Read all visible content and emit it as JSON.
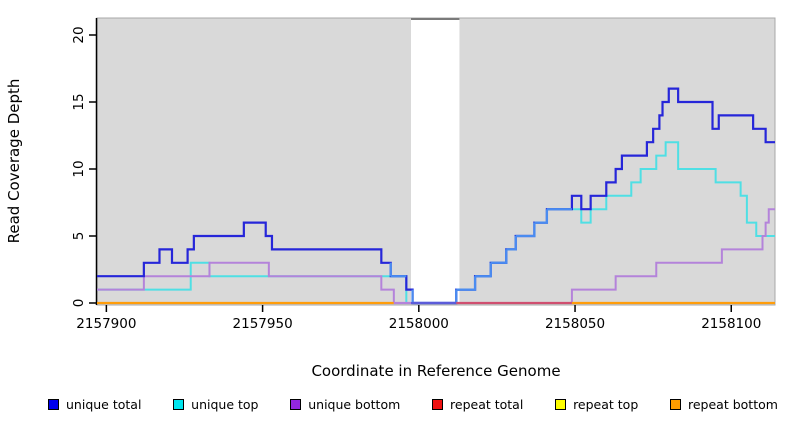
{
  "axes": {
    "x": {
      "label": "Coordinate in Reference Genome",
      "ticks": [
        "2157900",
        "2157950",
        "2158000",
        "2158050",
        "2158100"
      ],
      "tick_values": [
        2157900,
        2157950,
        2158000,
        2158050,
        2158100
      ]
    },
    "y": {
      "label": "Read Coverage Depth",
      "ticks": [
        "0",
        "5",
        "10",
        "15",
        "20"
      ],
      "tick_values": [
        0,
        5,
        10,
        15,
        20
      ]
    }
  },
  "legend": {
    "items": [
      {
        "name": "unique-total",
        "label": "unique total",
        "color": "#0000ee"
      },
      {
        "name": "unique-top",
        "label": "unique top",
        "color": "#00e5ee"
      },
      {
        "name": "unique-bottom",
        "label": "unique bottom",
        "color": "#9326e0"
      },
      {
        "name": "repeat-total",
        "label": "repeat total",
        "color": "#ee1111"
      },
      {
        "name": "repeat-top",
        "label": "repeat top",
        "color": "#fdfd00"
      },
      {
        "name": "repeat-bottom",
        "label": "repeat bottom",
        "color": "#ff9d00"
      }
    ]
  },
  "chart_data": {
    "type": "line",
    "subtype": "step-coverage",
    "title": "",
    "xlabel": "Coordinate in Reference Genome",
    "ylabel": "Read Coverage Depth",
    "x_range": [
      2157897,
      2158114
    ],
    "y_range": [
      0,
      21.3
    ],
    "x_ticks": [
      2157900,
      2157950,
      2158000,
      2158050,
      2158100
    ],
    "y_ticks": [
      0,
      5,
      10,
      15,
      20
    ],
    "panel_color": "#d9d9d9",
    "gap_region": {
      "from": 2157997.5,
      "to": 2158013,
      "color": "#ffffff"
    },
    "overlap_color_total_top": "#4a8cf0",
    "series": [
      {
        "name": "unique total",
        "color": "#2626d9",
        "steps": [
          [
            2157897,
            2
          ],
          [
            2157912,
            3
          ],
          [
            2157917,
            4
          ],
          [
            2157921,
            3
          ],
          [
            2157926,
            4
          ],
          [
            2157928,
            5
          ],
          [
            2157944,
            6
          ],
          [
            2157951,
            5
          ],
          [
            2157953,
            4
          ],
          [
            2157988,
            3
          ],
          [
            2157991,
            2
          ],
          [
            2157996,
            1
          ],
          [
            2157998,
            0
          ],
          [
            2158012,
            1
          ],
          [
            2158018,
            2
          ],
          [
            2158023,
            3
          ],
          [
            2158028,
            4
          ],
          [
            2158031,
            5
          ],
          [
            2158037,
            6
          ],
          [
            2158041,
            7
          ],
          [
            2158049,
            8
          ],
          [
            2158052,
            7
          ],
          [
            2158055,
            8
          ],
          [
            2158060,
            9
          ],
          [
            2158063,
            10
          ],
          [
            2158065,
            11
          ],
          [
            2158073,
            12
          ],
          [
            2158075,
            13
          ],
          [
            2158077,
            14
          ],
          [
            2158078,
            15
          ],
          [
            2158080,
            16
          ],
          [
            2158083,
            15
          ],
          [
            2158094,
            13
          ],
          [
            2158096,
            14
          ],
          [
            2158107,
            13
          ],
          [
            2158111,
            12
          ]
        ]
      },
      {
        "name": "unique top",
        "color": "#4fdfe4",
        "steps": [
          [
            2157897,
            1
          ],
          [
            2157927,
            3
          ],
          [
            2157933,
            2
          ],
          [
            2157996,
            0
          ],
          [
            2158012,
            1
          ],
          [
            2158018,
            2
          ],
          [
            2158023,
            3
          ],
          [
            2158028,
            4
          ],
          [
            2158031,
            5
          ],
          [
            2158037,
            6
          ],
          [
            2158041,
            7
          ],
          [
            2158052,
            6
          ],
          [
            2158055,
            7
          ],
          [
            2158060,
            8
          ],
          [
            2158068,
            9
          ],
          [
            2158071,
            10
          ],
          [
            2158076,
            11
          ],
          [
            2158079,
            12
          ],
          [
            2158083,
            10
          ],
          [
            2158095,
            9
          ],
          [
            2158103,
            8
          ],
          [
            2158105,
            6
          ],
          [
            2158108,
            5
          ]
        ]
      },
      {
        "name": "unique bottom",
        "color": "#b483da",
        "steps": [
          [
            2157897,
            1
          ],
          [
            2157912,
            2
          ],
          [
            2157933,
            3
          ],
          [
            2157952,
            2
          ],
          [
            2157988,
            1
          ],
          [
            2157992,
            0
          ],
          [
            2158049,
            1
          ],
          [
            2158063,
            2
          ],
          [
            2158076,
            3
          ],
          [
            2158097,
            4
          ],
          [
            2158110,
            5
          ],
          [
            2158111,
            6
          ],
          [
            2158112,
            7
          ]
        ]
      },
      {
        "name": "repeat total",
        "color": "#ee1111",
        "steps": [
          [
            2157897,
            0
          ]
        ]
      },
      {
        "name": "repeat top",
        "color": "#fdfd00",
        "steps": [
          [
            2157897,
            0
          ]
        ]
      },
      {
        "name": "repeat bottom",
        "color": "#ff9d0a",
        "steps": [
          [
            2157897,
            0
          ]
        ]
      }
    ],
    "zero_line_segments": [
      {
        "from": 2157897,
        "to": 2157992,
        "color": "#ff9d0a"
      },
      {
        "from": 2157992,
        "to": 2157997.5,
        "color": "#b483da"
      },
      {
        "from": 2157997.5,
        "to": 2158012,
        "color": "#5c5cd9"
      },
      {
        "from": 2158012,
        "to": 2158049,
        "color": "#d04f70"
      },
      {
        "from": 2158049,
        "to": 2158114,
        "color": "#ff9d0a"
      }
    ]
  }
}
